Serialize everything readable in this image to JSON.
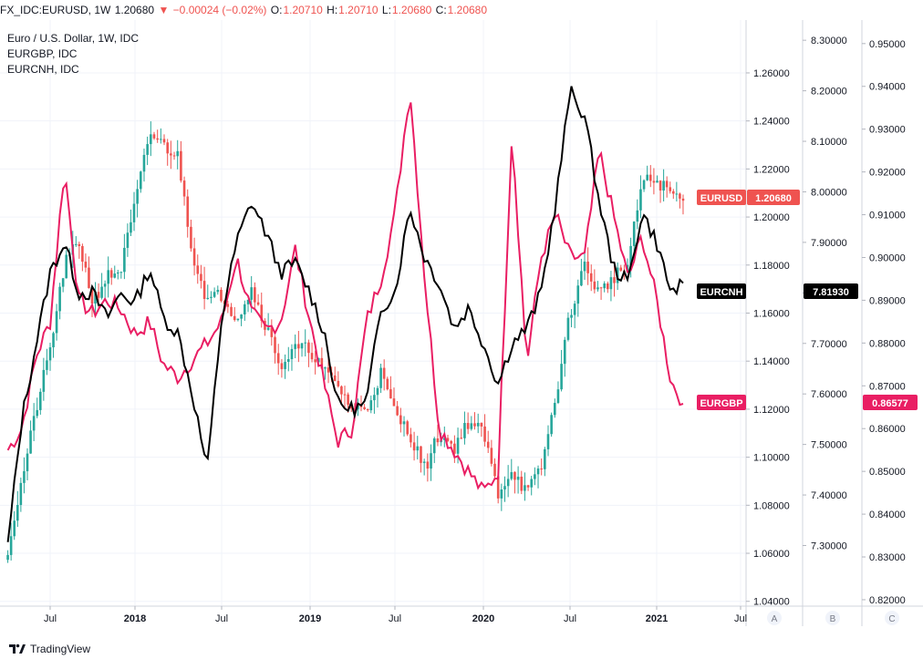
{
  "header": {
    "symbol": "FX_IDC:EURUSD, 1W",
    "last": "1.20680",
    "change": "−0.00024 (−0.02%)",
    "o_label": "O:",
    "o_value": "1.20710",
    "h_label": "H:",
    "h_value": "1.20710",
    "l_label": "L:",
    "l_value": "1.20680",
    "c_label": "C:",
    "c_value": "1.20680"
  },
  "legend": {
    "main": "Euro / U.S. Dollar, 1W, IDC",
    "compare1": "EURGBP, IDC",
    "compare2": "EURCNH, IDC"
  },
  "price_tags": {
    "eurusd_label": "EURUSD",
    "eurusd_value": "1.20680",
    "eurcnh_label": "EURCNH",
    "eurcnh_value": "7.81930",
    "eurgbp_label": "EURGBP",
    "eurgbp_value": "0.86577"
  },
  "scale_buttons": [
    "A",
    "B",
    "C"
  ],
  "footer": {
    "brand": "TradingView"
  },
  "colors": {
    "up": "#26a69a",
    "down": "#ef5350",
    "eurgbp": "#e91e63",
    "eurcnh": "#000000",
    "grid": "#f0f3fa",
    "axis_text": "#131722"
  },
  "chart_data": {
    "type": "candlestick_with_lines",
    "x_tick_labels": [
      "Jul",
      "2018",
      "Jul",
      "2019",
      "Jul",
      "2020",
      "Jul",
      "2021",
      "Jul"
    ],
    "x_tick_dates": [
      "2017-07",
      "2018-01",
      "2018-07",
      "2019-01",
      "2019-07",
      "2020-01",
      "2020-07",
      "2021-01",
      "2021-07"
    ],
    "axis_a": {
      "series": "EURUSD",
      "range": [
        1.038,
        1.282
      ],
      "ticks": [
        "1.26000",
        "1.24000",
        "1.22000",
        "1.20000",
        "1.18000",
        "1.16000",
        "1.14000",
        "1.12000",
        "1.10000",
        "1.08000",
        "1.06000",
        "1.04000"
      ]
    },
    "axis_b": {
      "series": "EURCNH",
      "range": [
        7.18,
        8.34
      ],
      "ticks": [
        "8.30000",
        "8.20000",
        "8.10000",
        "8.00000",
        "7.90000",
        "7.80000",
        "7.70000",
        "7.60000",
        "7.50000",
        "7.40000",
        "7.30000"
      ]
    },
    "axis_c": {
      "series": "EURGBP",
      "range": [
        0.8185,
        0.9555
      ],
      "ticks": [
        "0.95000",
        "0.94000",
        "0.93000",
        "0.92000",
        "0.91000",
        "0.90000",
        "0.89000",
        "0.88000",
        "0.87000",
        "0.86000",
        "0.85000",
        "0.84000",
        "0.83000",
        "0.82000"
      ]
    },
    "eurusd_close_anchors": [
      [
        "2017-04-01",
        1.062
      ],
      [
        "2017-05-01",
        1.09
      ],
      [
        "2017-06-01",
        1.12
      ],
      [
        "2017-07-01",
        1.145
      ],
      [
        "2017-08-01",
        1.18
      ],
      [
        "2017-09-01",
        1.19
      ],
      [
        "2017-10-01",
        1.165
      ],
      [
        "2017-11-01",
        1.175
      ],
      [
        "2017-12-01",
        1.178
      ],
      [
        "2018-01-01",
        1.205
      ],
      [
        "2018-02-01",
        1.235
      ],
      [
        "2018-03-01",
        1.23
      ],
      [
        "2018-04-01",
        1.225
      ],
      [
        "2018-05-01",
        1.185
      ],
      [
        "2018-06-01",
        1.165
      ],
      [
        "2018-07-01",
        1.168
      ],
      [
        "2018-08-01",
        1.158
      ],
      [
        "2018-09-01",
        1.17
      ],
      [
        "2018-10-01",
        1.155
      ],
      [
        "2018-11-01",
        1.138
      ],
      [
        "2018-12-01",
        1.145
      ],
      [
        "2019-01-01",
        1.145
      ],
      [
        "2019-02-01",
        1.135
      ],
      [
        "2019-03-01",
        1.13
      ],
      [
        "2019-04-01",
        1.12
      ],
      [
        "2019-05-01",
        1.12
      ],
      [
        "2019-06-01",
        1.135
      ],
      [
        "2019-07-01",
        1.118
      ],
      [
        "2019-08-01",
        1.11
      ],
      [
        "2019-09-01",
        1.095
      ],
      [
        "2019-10-01",
        1.11
      ],
      [
        "2019-11-01",
        1.104
      ],
      [
        "2019-12-01",
        1.115
      ],
      [
        "2020-01-01",
        1.11
      ],
      [
        "2020-02-01",
        1.085
      ],
      [
        "2020-03-01",
        1.095
      ],
      [
        "2020-04-01",
        1.085
      ],
      [
        "2020-05-01",
        1.095
      ],
      [
        "2020-06-01",
        1.125
      ],
      [
        "2020-07-01",
        1.16
      ],
      [
        "2020-08-01",
        1.18
      ],
      [
        "2020-09-01",
        1.168
      ],
      [
        "2020-10-01",
        1.175
      ],
      [
        "2020-11-01",
        1.18
      ],
      [
        "2020-12-01",
        1.215
      ],
      [
        "2021-01-01",
        1.215
      ],
      [
        "2021-02-01",
        1.21
      ],
      [
        "2021-03-01",
        1.2068
      ]
    ],
    "eurgbp_anchors": [
      [
        "2017-04-01",
        0.855
      ],
      [
        "2017-05-01",
        0.86
      ],
      [
        "2017-06-01",
        0.877
      ],
      [
        "2017-07-01",
        0.885
      ],
      [
        "2017-08-01",
        0.921
      ],
      [
        "2017-09-01",
        0.89
      ],
      [
        "2017-10-01",
        0.887
      ],
      [
        "2017-11-01",
        0.89
      ],
      [
        "2017-12-01",
        0.888
      ],
      [
        "2018-01-01",
        0.882
      ],
      [
        "2018-02-01",
        0.885
      ],
      [
        "2018-03-01",
        0.875
      ],
      [
        "2018-04-01",
        0.872
      ],
      [
        "2018-05-01",
        0.876
      ],
      [
        "2018-06-01",
        0.88
      ],
      [
        "2018-07-01",
        0.885
      ],
      [
        "2018-08-01",
        0.9
      ],
      [
        "2018-09-01",
        0.887
      ],
      [
        "2018-10-01",
        0.883
      ],
      [
        "2018-11-01",
        0.885
      ],
      [
        "2018-12-01",
        0.902
      ],
      [
        "2019-01-01",
        0.885
      ],
      [
        "2019-02-01",
        0.87
      ],
      [
        "2019-03-01",
        0.857
      ],
      [
        "2019-04-01",
        0.86
      ],
      [
        "2019-05-01",
        0.885
      ],
      [
        "2019-06-01",
        0.895
      ],
      [
        "2019-07-01",
        0.91
      ],
      [
        "2019-08-01",
        0.94
      ],
      [
        "2019-09-01",
        0.895
      ],
      [
        "2019-10-01",
        0.86
      ],
      [
        "2019-11-01",
        0.855
      ],
      [
        "2019-12-01",
        0.85
      ],
      [
        "2020-01-01",
        0.845
      ],
      [
        "2020-02-01",
        0.85
      ],
      [
        "2020-03-01",
        0.93
      ],
      [
        "2020-04-01",
        0.875
      ],
      [
        "2020-05-01",
        0.9
      ],
      [
        "2020-06-01",
        0.91
      ],
      [
        "2020-07-01",
        0.9
      ],
      [
        "2020-08-01",
        0.9
      ],
      [
        "2020-09-01",
        0.925
      ],
      [
        "2020-10-01",
        0.91
      ],
      [
        "2020-11-01",
        0.895
      ],
      [
        "2020-12-01",
        0.905
      ],
      [
        "2021-01-01",
        0.89
      ],
      [
        "2021-02-01",
        0.871
      ],
      [
        "2021-03-01",
        0.8658
      ]
    ],
    "eurcnh_anchors": [
      [
        "2017-04-01",
        7.3
      ],
      [
        "2017-05-01",
        7.55
      ],
      [
        "2017-06-01",
        7.7
      ],
      [
        "2017-07-01",
        7.84
      ],
      [
        "2017-08-01",
        7.9
      ],
      [
        "2017-09-01",
        7.8
      ],
      [
        "2017-10-01",
        7.8
      ],
      [
        "2017-11-01",
        7.75
      ],
      [
        "2017-12-01",
        7.8
      ],
      [
        "2018-01-01",
        7.78
      ],
      [
        "2018-02-01",
        7.85
      ],
      [
        "2018-03-01",
        7.75
      ],
      [
        "2018-04-01",
        7.72
      ],
      [
        "2018-05-01",
        7.6
      ],
      [
        "2018-06-01",
        7.45
      ],
      [
        "2018-07-01",
        7.75
      ],
      [
        "2018-08-01",
        7.9
      ],
      [
        "2018-09-01",
        7.98
      ],
      [
        "2018-10-01",
        7.92
      ],
      [
        "2018-11-01",
        7.84
      ],
      [
        "2018-12-01",
        7.86
      ],
      [
        "2019-01-01",
        7.8
      ],
      [
        "2019-02-01",
        7.72
      ],
      [
        "2019-03-01",
        7.58
      ],
      [
        "2019-04-01",
        7.57
      ],
      [
        "2019-05-01",
        7.58
      ],
      [
        "2019-06-01",
        7.77
      ],
      [
        "2019-07-01",
        7.8
      ],
      [
        "2019-08-01",
        7.97
      ],
      [
        "2019-09-01",
        7.87
      ],
      [
        "2019-10-01",
        7.82
      ],
      [
        "2019-11-01",
        7.73
      ],
      [
        "2019-12-01",
        7.77
      ],
      [
        "2020-01-01",
        7.7
      ],
      [
        "2020-02-01",
        7.62
      ],
      [
        "2020-03-01",
        7.7
      ],
      [
        "2020-04-01",
        7.73
      ],
      [
        "2020-05-01",
        7.8
      ],
      [
        "2020-06-01",
        7.98
      ],
      [
        "2020-07-01",
        8.2
      ],
      [
        "2020-08-01",
        8.15
      ],
      [
        "2020-09-01",
        7.98
      ],
      [
        "2020-10-01",
        7.85
      ],
      [
        "2020-11-01",
        7.82
      ],
      [
        "2020-12-01",
        7.96
      ],
      [
        "2021-01-01",
        7.9
      ],
      [
        "2021-02-01",
        7.8
      ],
      [
        "2021-03-01",
        7.8193
      ]
    ]
  }
}
